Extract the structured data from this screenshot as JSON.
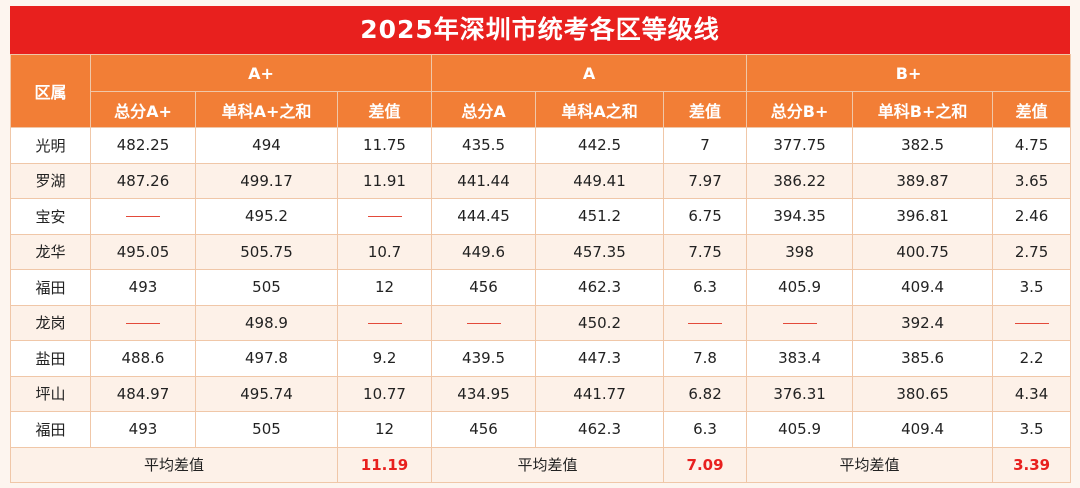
{
  "title": "2025年深圳市统考各区等级线",
  "header": {
    "district_label": "区属",
    "groups": [
      "A+",
      "A",
      "B+"
    ],
    "subs": [
      "总分A+",
      "单科A+之和",
      "差值",
      "总分A",
      "单科A之和",
      "差值",
      "总分B+",
      "单科B+之和",
      "差值"
    ]
  },
  "rows": [
    {
      "district": "光明",
      "values": [
        "482.25",
        "494",
        "11.75",
        "435.5",
        "442.5",
        "7",
        "377.75",
        "382.5",
        "4.75"
      ]
    },
    {
      "district": "罗湖",
      "values": [
        "487.26",
        "499.17",
        "11.91",
        "441.44",
        "449.41",
        "7.97",
        "386.22",
        "389.87",
        "3.65"
      ]
    },
    {
      "district": "宝安",
      "values": [
        "",
        "495.2",
        "",
        "444.45",
        "451.2",
        "6.75",
        "394.35",
        "396.81",
        "2.46"
      ]
    },
    {
      "district": "龙华",
      "values": [
        "495.05",
        "505.75",
        "10.7",
        "449.6",
        "457.35",
        "7.75",
        "398",
        "400.75",
        "2.75"
      ]
    },
    {
      "district": "福田",
      "values": [
        "493",
        "505",
        "12",
        "456",
        "462.3",
        "6.3",
        "405.9",
        "409.4",
        "3.5"
      ]
    },
    {
      "district": "龙岗",
      "values": [
        "",
        "498.9",
        "",
        "",
        "450.2",
        "",
        "",
        "392.4",
        ""
      ]
    },
    {
      "district": "盐田",
      "values": [
        "488.6",
        "497.8",
        "9.2",
        "439.5",
        "447.3",
        "7.8",
        "383.4",
        "385.6",
        "2.2"
      ]
    },
    {
      "district": "坪山",
      "values": [
        "484.97",
        "495.74",
        "10.77",
        "434.95",
        "441.77",
        "6.82",
        "376.31",
        "380.65",
        "4.34"
      ]
    },
    {
      "district": "福田",
      "values": [
        "493",
        "505",
        "12",
        "456",
        "462.3",
        "6.3",
        "405.9",
        "409.4",
        "3.5"
      ]
    }
  ],
  "footer": {
    "avg_label": "平均差值",
    "avgs": [
      "11.19",
      "7.09",
      "3.39"
    ]
  },
  "colors": {
    "title_bg": "#e8201e",
    "header_bg": "#f27e36",
    "accent_text": "#e8201e"
  }
}
